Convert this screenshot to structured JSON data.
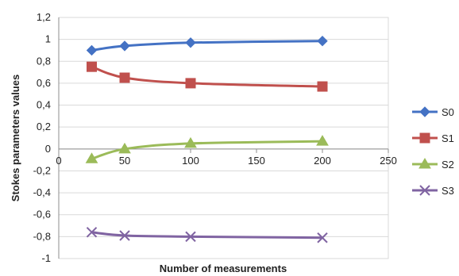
{
  "chart_data": {
    "type": "line",
    "xlabel": "Number of measurements",
    "ylabel": "Stokes parameters values",
    "xlim": [
      0,
      250
    ],
    "ylim": [
      -1,
      1.2
    ],
    "x_ticks": [
      0,
      50,
      100,
      150,
      200,
      250
    ],
    "y_ticks": [
      1.2,
      1,
      0.8,
      0.6,
      0.4,
      0.2,
      0,
      -0.2,
      -0.4,
      -0.6,
      -0.8,
      -1
    ],
    "x_tick_labels": [
      "0",
      "50",
      "100",
      "150",
      "200",
      "250"
    ],
    "y_tick_labels": [
      "1,2",
      "1",
      "0,8",
      "0,6",
      "0,4",
      "0,2",
      "0",
      "-0,2",
      "-0,4",
      "-0,6",
      "-0,8",
      "-1"
    ],
    "grid": "horizontal",
    "legend_position": "right",
    "x": [
      25,
      50,
      100,
      200
    ],
    "series": [
      {
        "name": "S0",
        "values": [
          0.9,
          0.94,
          0.97,
          0.985
        ],
        "color": "#4472C4",
        "marker": "diamond"
      },
      {
        "name": "S1",
        "values": [
          0.75,
          0.65,
          0.6,
          0.57
        ],
        "color": "#C0504D",
        "marker": "square"
      },
      {
        "name": "S2",
        "values": [
          -0.09,
          0.0,
          0.05,
          0.07
        ],
        "color": "#9BBB59",
        "marker": "triangle"
      },
      {
        "name": "S3",
        "values": [
          -0.76,
          -0.79,
          -0.8,
          -0.81
        ],
        "color": "#8064A2",
        "marker": "x"
      }
    ]
  }
}
